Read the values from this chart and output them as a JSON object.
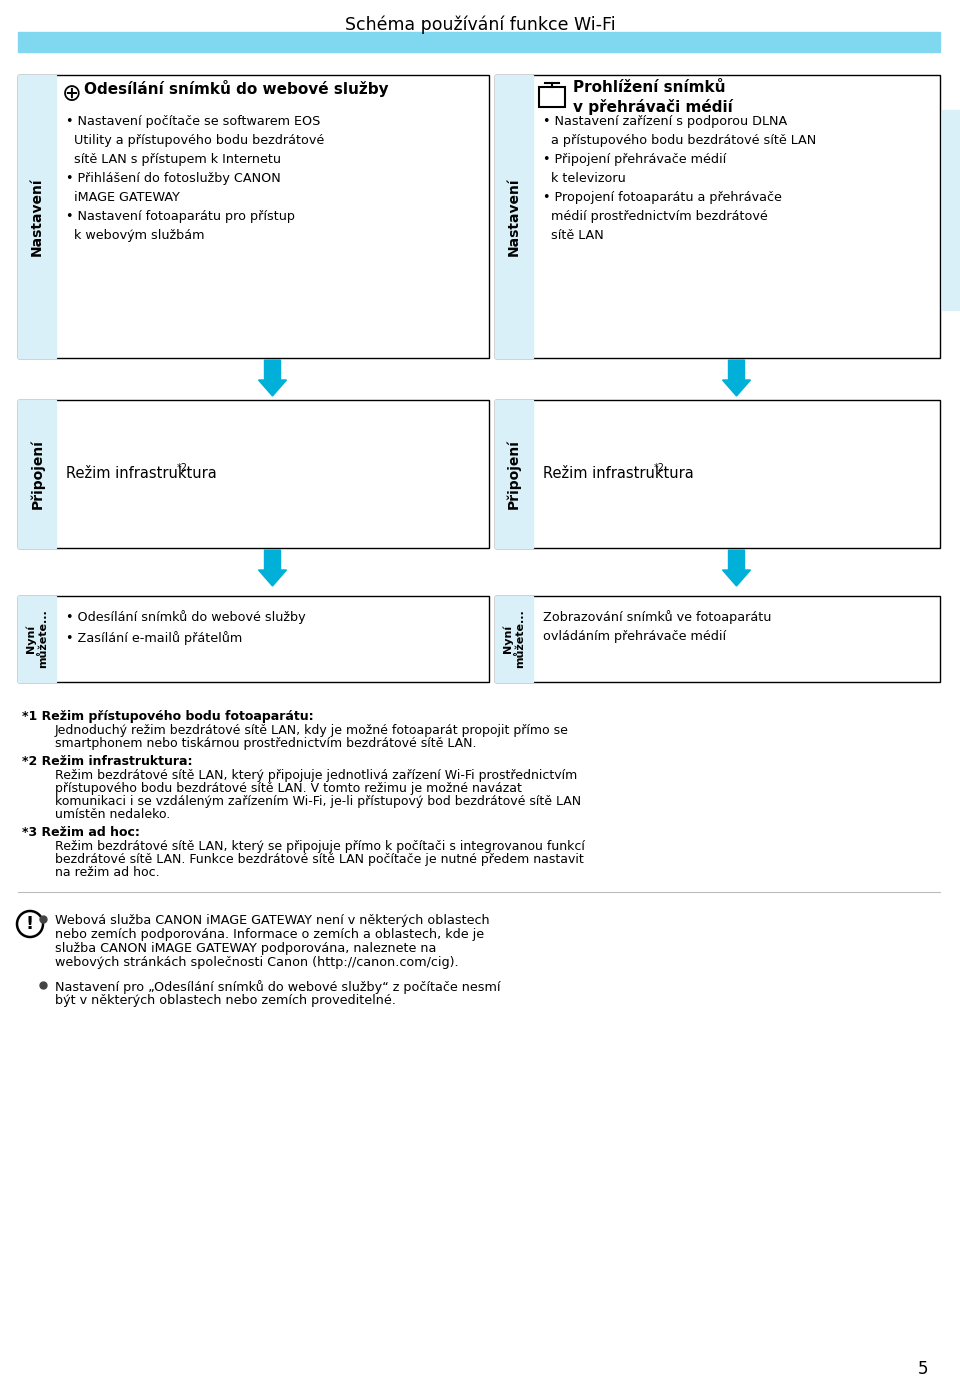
{
  "title": "Schéma používání funkce Wi-Fi",
  "bg_color": "#ffffff",
  "light_blue_bar": "#7fd8f0",
  "light_blue_fill": "#daf0f9",
  "arrow_color": "#00b0d8",
  "border_color": "#000000",
  "text_color": "#000000",
  "page_number": "5",
  "col1_header_text": "Odesílání snímků do webové služby",
  "col2_header_text": "Prohlížení snímků\nv přehrávači médií",
  "row1_label": "Nastavení",
  "col1_row1_lines": [
    "• Nastavení počítače se softwarem EOS",
    "  Utility a přístupového bodu bezdrátové",
    "  sítě LAN s přístupem k Internetu",
    "• Přihlášení do fotoslužby CANON",
    "  iMAGE GATEWAY",
    "• Nastavení fotoaparátu pro přístup",
    "  k webovým službám"
  ],
  "col2_row1_lines": [
    "• Nastavení zařízení s podporou DLNA",
    "  a přístupového bodu bezdrátové sítě LAN",
    "• Připojení přehrávače médií",
    "  k televizoru",
    "• Propojení fotoaparátu a přehrávače",
    "  médií prostřednictvím bezdrátové",
    "  sítě LAN"
  ],
  "row2_label": "Připojení",
  "col1_row2_text": "Režim infrastruktura",
  "col2_row2_text": "Režim infrastruktura",
  "row3_label": "Nyní\nmůžete...",
  "col1_row3_lines": [
    "• Odesílání snímků do webové služby",
    "• Zasílání e-mailů přátelům"
  ],
  "col2_row3_text": "Zobrazování snímků ve fotoaparátu\novládáním přehrávače médií",
  "footnote1_bold": "*1 Režim přístupového bodu fotoaparátu:",
  "footnote1_text": "Jednoduchý režim bezdrátové sítě LAN, kdy je možné fotoaparát propojit přímo se\nsmartphonem nebo tiskárnou prostřednictvím bezdrátové sítě LAN.",
  "footnote2_bold": "*2 Režim infrastruktura:",
  "footnote2_text": "Režim bezdrátové sítě LAN, který připojuje jednotlivá zařízení Wi-Fi prostřednictvím\npřístupového bodu bezdrátové sítě LAN. V tomto režimu je možné navázat\nkomunikaci i se vzdáleným zařízením Wi-Fi, je-li přístupový bod bezdrátové sítě LAN\numístěn nedaleko.",
  "footnote3_bold": "*3 Režim ad hoc:",
  "footnote3_text": "Režim bezdrátové sítě LAN, který se připojuje přímo k počítači s integrovanou funkcí\nbezdrátové sítě LAN. Funkce bezdrátové sítě LAN počítače je nutné předem nastavit\nna režim ad hoc.",
  "note1": "Webová služba CANON iMAGE GATEWAY není v některých oblastech\nnebo zemích podporována. Informace o zemích a oblastech, kde je\nslužba CANON iMAGE GATEWAY podporována, naleznete na\nwebových stránkách společnosti Canon (http://canon.com/cig).",
  "note2": "Nastavení pro „Odesílání snímků do webové služby“ z počítače nesmí\nbýt v některých oblastech nebo zemích proveditelné."
}
